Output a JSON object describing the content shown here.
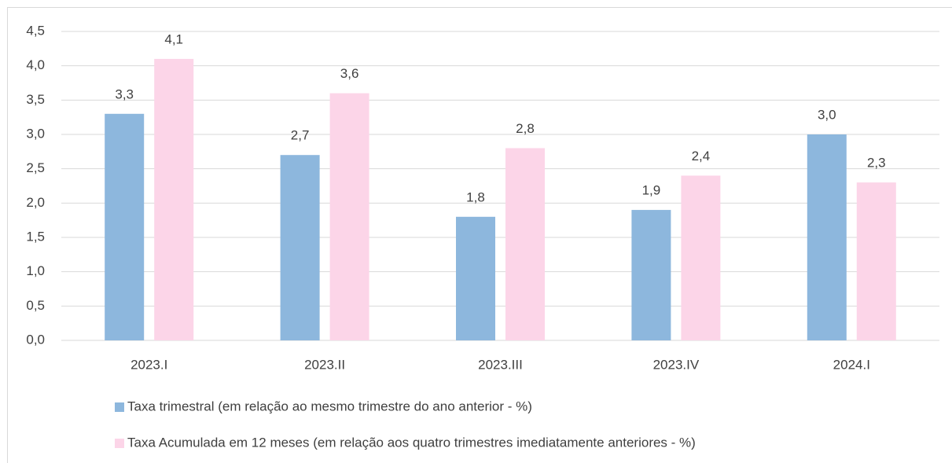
{
  "chart_data": {
    "type": "bar",
    "categories": [
      "2023.I",
      "2023.II",
      "2023.III",
      "2023.IV",
      "2024.I"
    ],
    "series": [
      {
        "name": "Taxa trimestral (em relação ao mesmo trimestre do ano anterior - %)",
        "color": "#8db7dd",
        "values": [
          3.3,
          2.7,
          1.8,
          1.9,
          3.0
        ],
        "value_labels": [
          "3,3",
          "2,7",
          "1,8",
          "1,9",
          "3,0"
        ]
      },
      {
        "name": "Taxa Acumulada em 12 meses (em relação aos quatro trimestres imediatamente anteriores - %)",
        "color": "#fcd5e8",
        "values": [
          4.1,
          3.6,
          2.8,
          2.4,
          2.3
        ],
        "value_labels": [
          "4,1",
          "3,6",
          "2,8",
          "2,4",
          "2,3"
        ]
      }
    ],
    "ylim": [
      0,
      4.5
    ],
    "yticks": [
      {
        "value": 0,
        "label": "0,0"
      },
      {
        "value": 0.5,
        "label": "0,5"
      },
      {
        "value": 1,
        "label": "1,0"
      },
      {
        "value": 1.5,
        "label": "1,5"
      },
      {
        "value": 2,
        "label": "2,0"
      },
      {
        "value": 2.5,
        "label": "2,5"
      },
      {
        "value": 3,
        "label": "3,0"
      },
      {
        "value": 3.5,
        "label": "3,5"
      },
      {
        "value": 4,
        "label": "4,0"
      },
      {
        "value": 4.5,
        "label": "4,5"
      }
    ],
    "grid": true,
    "legend": "bottom"
  }
}
